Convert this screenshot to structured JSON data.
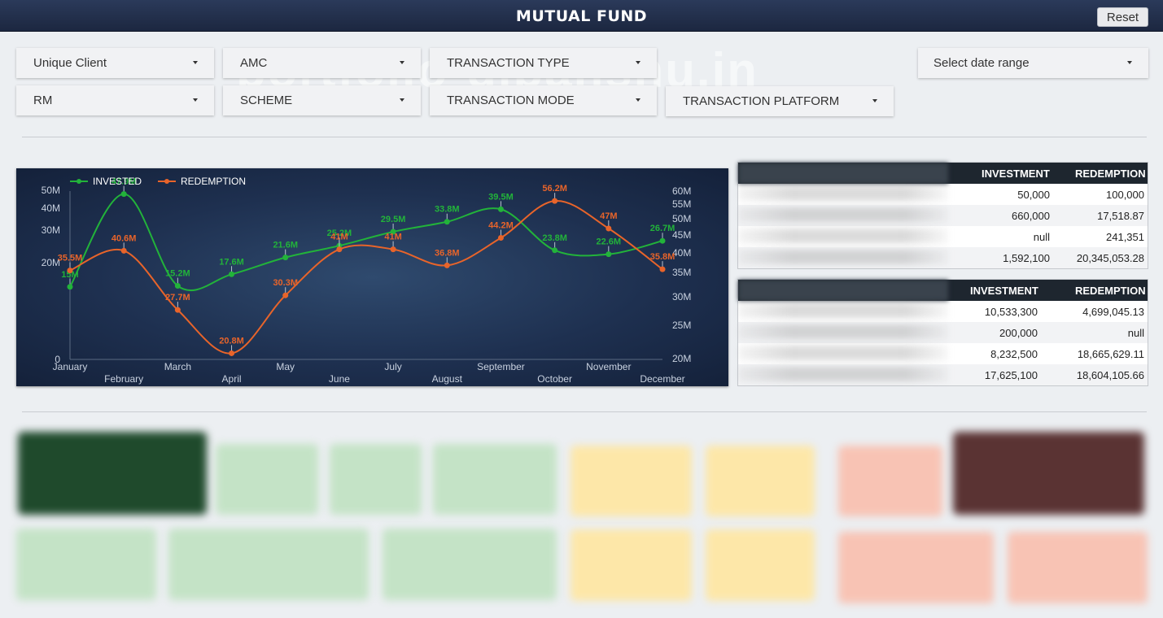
{
  "header": {
    "title": "MUTUAL FUND",
    "reset_label": "Reset"
  },
  "filters": {
    "unique_client": "Unique Client",
    "amc": "AMC",
    "transaction_type": "TRANSACTION TYPE",
    "date_range": "Select date range",
    "rm": "RM",
    "scheme": "SCHEME",
    "transaction_mode": "TRANSACTION MODE",
    "transaction_platform": "TRANSACTION PLATFORM"
  },
  "watermark": "portfolio-dipanshu.in",
  "chart_data": {
    "type": "line",
    "categories": [
      "January",
      "February",
      "March",
      "April",
      "May",
      "June",
      "July",
      "August",
      "September",
      "October",
      "November",
      "December"
    ],
    "series": [
      {
        "name": "INVESTED",
        "color": "#22b33a",
        "values": [
          15,
          47.9,
          15.2,
          17.6,
          21.6,
          25.2,
          29.5,
          33.8,
          39.5,
          23.8,
          22.6,
          26.7
        ],
        "labels": [
          "15M",
          "47.9M",
          "15.2M",
          "17.6M",
          "21.6M",
          "25.2M",
          "29.5M",
          "33.8M",
          "39.5M",
          "23.8M",
          "22.6M",
          "26.7M"
        ]
      },
      {
        "name": "REDEMPTION",
        "color": "#e8642a",
        "values": [
          35.5,
          40.6,
          27.7,
          20.8,
          30.3,
          41,
          41,
          36.8,
          44.2,
          56.2,
          47,
          35.8
        ],
        "labels": [
          "35.5M",
          "40.6M",
          "27.7M",
          "20.8M",
          "30.3M",
          "41M",
          "41M",
          "36.8M",
          "44.2M",
          "56.2M",
          "47M",
          "35.8M"
        ]
      }
    ],
    "y_left": {
      "ticks": [
        "0",
        "20M",
        "30M",
        "40M",
        "50M"
      ],
      "range": [
        0,
        50
      ]
    },
    "y_right": {
      "ticks": [
        "20M",
        "25M",
        "30M",
        "35M",
        "40M",
        "45M",
        "50M",
        "55M",
        "60M"
      ],
      "range": [
        20,
        60
      ]
    },
    "legend": "top-left",
    "grid": false
  },
  "table1": {
    "headers": [
      "INVESTMENT",
      "REDEMPTION"
    ],
    "rows": [
      {
        "investment": "50,000",
        "redemption": "100,000"
      },
      {
        "investment": "660,000",
        "redemption": "17,518.87"
      },
      {
        "investment": "null",
        "redemption": "241,351"
      },
      {
        "investment": "1,592,100",
        "redemption": "20,345,053.28"
      }
    ]
  },
  "table2": {
    "headers": [
      "INVESTMENT",
      "REDEMPTION"
    ],
    "rows": [
      {
        "investment": "10,533,300",
        "redemption": "4,699,045.13"
      },
      {
        "investment": "200,000",
        "redemption": "null"
      },
      {
        "investment": "8,232,500",
        "redemption": "18,665,629.11"
      },
      {
        "investment": "17,625,100",
        "redemption": "18,604,105.66"
      }
    ]
  },
  "kpis": []
}
